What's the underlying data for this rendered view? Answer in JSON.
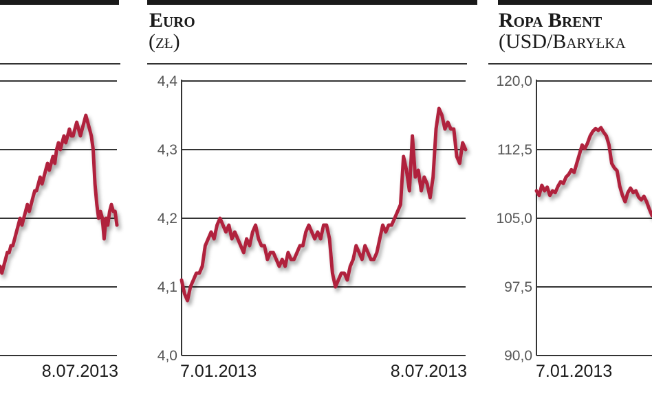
{
  "chart_data": [
    {
      "type": "line",
      "title": "",
      "subtitle": "",
      "ylim": [
        3.9,
        4.3
      ],
      "yticks": [
        "",
        "",
        "",
        ""
      ],
      "x_start_label": "",
      "x_end_label": "8.07.2013",
      "series_color": "#b0203e",
      "series": [
        {
          "values": [
            4.03,
            4.02,
            4.03,
            4.04,
            4.05,
            4.05,
            4.06,
            4.06,
            4.07,
            4.08,
            4.09,
            4.1,
            4.09,
            4.1,
            4.11,
            4.12,
            4.11,
            4.12,
            4.13,
            4.14,
            4.14,
            4.15,
            4.16,
            4.15,
            4.16,
            4.17,
            4.18,
            4.17,
            4.18,
            4.19,
            4.18,
            4.2,
            4.21,
            4.2,
            4.21,
            4.22,
            4.21,
            4.22,
            4.23,
            4.22,
            4.22,
            4.23,
            4.24,
            4.23,
            4.22,
            4.23,
            4.24,
            4.25,
            4.24,
            4.23,
            4.22,
            4.2,
            4.15,
            4.12,
            4.1,
            4.11,
            4.1,
            4.07,
            4.1,
            4.09,
            4.11,
            4.12,
            4.11,
            4.11,
            4.09
          ]
        }
      ]
    },
    {
      "type": "line",
      "title": "Euro",
      "subtitle": "(zł)",
      "ylim": [
        4.0,
        4.4
      ],
      "yticks": [
        "4,0",
        "4,1",
        "4,2",
        "4,3",
        "4,4"
      ],
      "x_start_label": "7.01.2013",
      "x_end_label": "8.07.2013",
      "series_color": "#b0203e",
      "series": [
        {
          "values": [
            4.11,
            4.09,
            4.08,
            4.1,
            4.11,
            4.12,
            4.12,
            4.13,
            4.16,
            4.17,
            4.18,
            4.17,
            4.19,
            4.2,
            4.19,
            4.18,
            4.19,
            4.17,
            4.18,
            4.17,
            4.16,
            4.15,
            4.17,
            4.16,
            4.18,
            4.19,
            4.17,
            4.16,
            4.16,
            4.14,
            4.15,
            4.15,
            4.14,
            4.13,
            4.14,
            4.13,
            4.15,
            4.14,
            4.14,
            4.15,
            4.16,
            4.16,
            4.18,
            4.19,
            4.18,
            4.17,
            4.18,
            4.17,
            4.19,
            4.19,
            4.17,
            4.12,
            4.1,
            4.11,
            4.12,
            4.12,
            4.11,
            4.13,
            4.14,
            4.16,
            4.15,
            4.14,
            4.16,
            4.15,
            4.14,
            4.14,
            4.15,
            4.17,
            4.19,
            4.18,
            4.19,
            4.19,
            4.2,
            4.21,
            4.22,
            4.29,
            4.27,
            4.24,
            4.32,
            4.26,
            4.27,
            4.24,
            4.26,
            4.25,
            4.23,
            4.26,
            4.33,
            4.36,
            4.35,
            4.33,
            4.34,
            4.33,
            4.33,
            4.29,
            4.28,
            4.31,
            4.3
          ]
        }
      ]
    },
    {
      "type": "line",
      "title": "Ropa Brent",
      "subtitle": "(USD/Baryłka",
      "ylim": [
        90.0,
        120.0
      ],
      "yticks": [
        "90,0",
        "97,5",
        "105,0",
        "112,5",
        "120,0"
      ],
      "x_start_label": "7.01.2013",
      "x_end_label": "",
      "series_color": "#b0203e",
      "series": [
        {
          "values": [
            108.0,
            107.5,
            108.6,
            108.0,
            108.4,
            107.5,
            108.0,
            107.8,
            108.5,
            109.0,
            108.8,
            109.5,
            109.8,
            110.3,
            110.0,
            111.0,
            112.0,
            113.0,
            112.6,
            113.2,
            114.0,
            114.5,
            114.8,
            114.6,
            114.9,
            114.4,
            114.0,
            113.0,
            111.0,
            110.5,
            110.2,
            108.5,
            107.5,
            106.8,
            107.8,
            108.3,
            107.8,
            108.0,
            107.3,
            107.0,
            107.4,
            106.8,
            106.0,
            105.3
          ]
        }
      ]
    }
  ]
}
